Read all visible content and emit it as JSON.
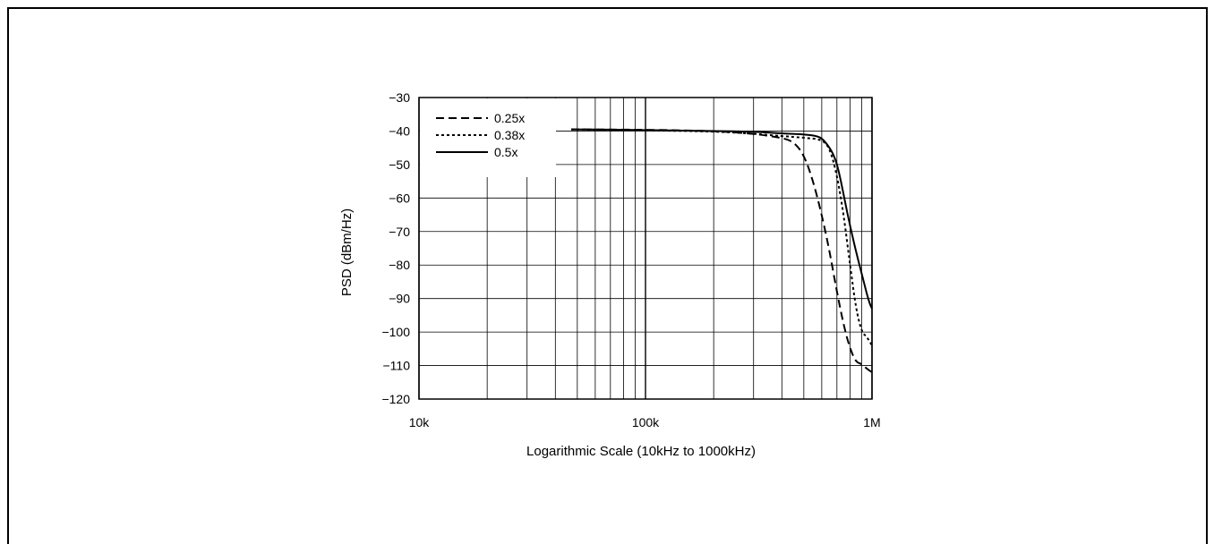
{
  "chart_data": {
    "type": "line",
    "title": "",
    "xlabel": "Logarithmic Scale (10kHz to 1000kHz)",
    "ylabel": "PSD (dBm/Hz)",
    "xscale": "log",
    "xlim": [
      10000,
      1000000
    ],
    "ylim": [
      -120,
      -30
    ],
    "x_ticks": [
      {
        "value": 10000,
        "label": "10k"
      },
      {
        "value": 100000,
        "label": "100k"
      },
      {
        "value": 1000000,
        "label": "1M"
      }
    ],
    "y_ticks": [
      {
        "value": -30,
        "label": "−30"
      },
      {
        "value": -40,
        "label": "−40"
      },
      {
        "value": -50,
        "label": "−50"
      },
      {
        "value": -60,
        "label": "−60"
      },
      {
        "value": -70,
        "label": "−70"
      },
      {
        "value": -80,
        "label": "−80"
      },
      {
        "value": -90,
        "label": "−90"
      },
      {
        "value": -100,
        "label": "−100"
      },
      {
        "value": -110,
        "label": "−110"
      },
      {
        "value": -120,
        "label": "−120"
      }
    ],
    "grid": true,
    "legend_position": "top-left",
    "series": [
      {
        "name": "0.25x",
        "style": "dashed",
        "color": "#000000",
        "points": [
          [
            47000,
            -39.5
          ],
          [
            100000,
            -39.6
          ],
          [
            200000,
            -40.0
          ],
          [
            300000,
            -40.8
          ],
          [
            400000,
            -42.0
          ],
          [
            450000,
            -43.2
          ],
          [
            500000,
            -47.0
          ],
          [
            550000,
            -55.0
          ],
          [
            600000,
            -65.0
          ],
          [
            650000,
            -76.0
          ],
          [
            700000,
            -88.0
          ],
          [
            750000,
            -98.0
          ],
          [
            800000,
            -105.0
          ],
          [
            850000,
            -109.0
          ],
          [
            900000,
            -109.5
          ],
          [
            950000,
            -111.0
          ],
          [
            1000000,
            -112.0
          ]
        ]
      },
      {
        "name": "0.38x",
        "style": "dotted",
        "color": "#000000",
        "points": [
          [
            47000,
            -39.5
          ],
          [
            100000,
            -39.8
          ],
          [
            200000,
            -40.1
          ],
          [
            300000,
            -40.8
          ],
          [
            400000,
            -41.5
          ],
          [
            500000,
            -42.0
          ],
          [
            600000,
            -42.5
          ],
          [
            650000,
            -45.0
          ],
          [
            700000,
            -53.0
          ],
          [
            750000,
            -65.0
          ],
          [
            800000,
            -80.0
          ],
          [
            850000,
            -93.0
          ],
          [
            900000,
            -100.0
          ],
          [
            950000,
            -101.5
          ],
          [
            1000000,
            -104.0
          ]
        ]
      },
      {
        "name": "0.5x",
        "style": "solid",
        "color": "#000000",
        "points": [
          [
            47000,
            -39.5
          ],
          [
            100000,
            -39.7
          ],
          [
            200000,
            -40.0
          ],
          [
            300000,
            -40.2
          ],
          [
            400000,
            -40.7
          ],
          [
            500000,
            -41.0
          ],
          [
            580000,
            -41.5
          ],
          [
            620000,
            -43.0
          ],
          [
            680000,
            -47.0
          ],
          [
            720000,
            -53.0
          ],
          [
            780000,
            -65.0
          ],
          [
            850000,
            -76.0
          ],
          [
            920000,
            -85.0
          ],
          [
            970000,
            -91.0
          ],
          [
            1000000,
            -93.0
          ]
        ]
      }
    ]
  }
}
